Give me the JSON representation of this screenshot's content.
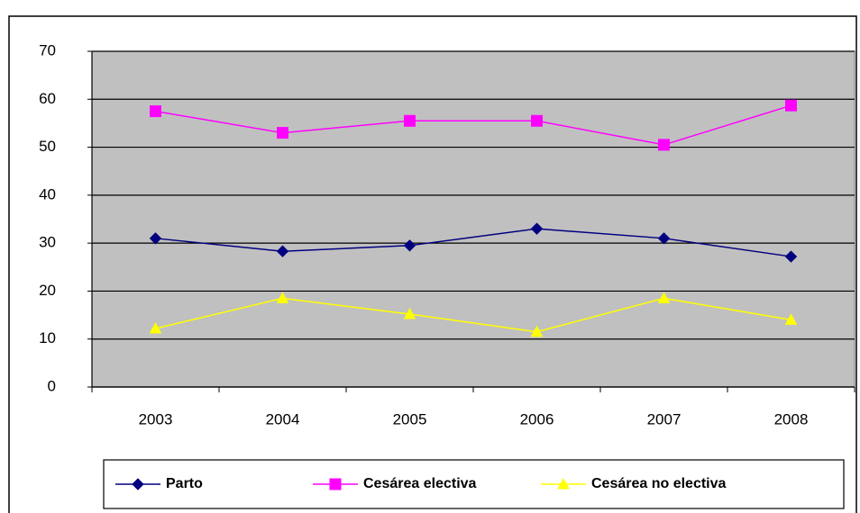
{
  "chart_data": {
    "type": "line",
    "categories": [
      "2003",
      "2004",
      "2005",
      "2006",
      "2007",
      "2008"
    ],
    "series": [
      {
        "name": "Parto",
        "color": "#000080",
        "marker": "diamond",
        "values": [
          31,
          28.3,
          29.5,
          33,
          31,
          27.2
        ]
      },
      {
        "name": "Cesárea electiva",
        "color": "#ff00ff",
        "marker": "square",
        "values": [
          57.5,
          53,
          55.5,
          55.5,
          50.5,
          58.7
        ]
      },
      {
        "name": "Cesárea no electiva",
        "color": "#ffff00",
        "marker": "triangle",
        "values": [
          12.2,
          18.5,
          15.2,
          11.5,
          18.5,
          14
        ]
      }
    ],
    "ylim": [
      0,
      70
    ],
    "yticks": [
      0,
      10,
      20,
      30,
      40,
      50,
      60,
      70
    ],
    "grid": true,
    "legend": "bottom"
  }
}
